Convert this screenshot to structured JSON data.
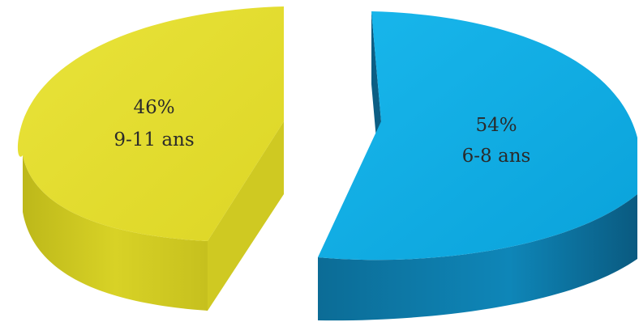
{
  "chart_data": {
    "type": "pie",
    "title": "",
    "slices": [
      {
        "label": "9-11 ans",
        "value": 46,
        "value_label": "46%",
        "color": "#E2DC2B",
        "side_color": "#C9C41E"
      },
      {
        "label": "6-8 ans",
        "value": 54,
        "value_label": "54%",
        "color": "#12AEE6",
        "side_color": "#0A6E9A"
      }
    ],
    "style": "3d-exploded",
    "legend": "none"
  }
}
